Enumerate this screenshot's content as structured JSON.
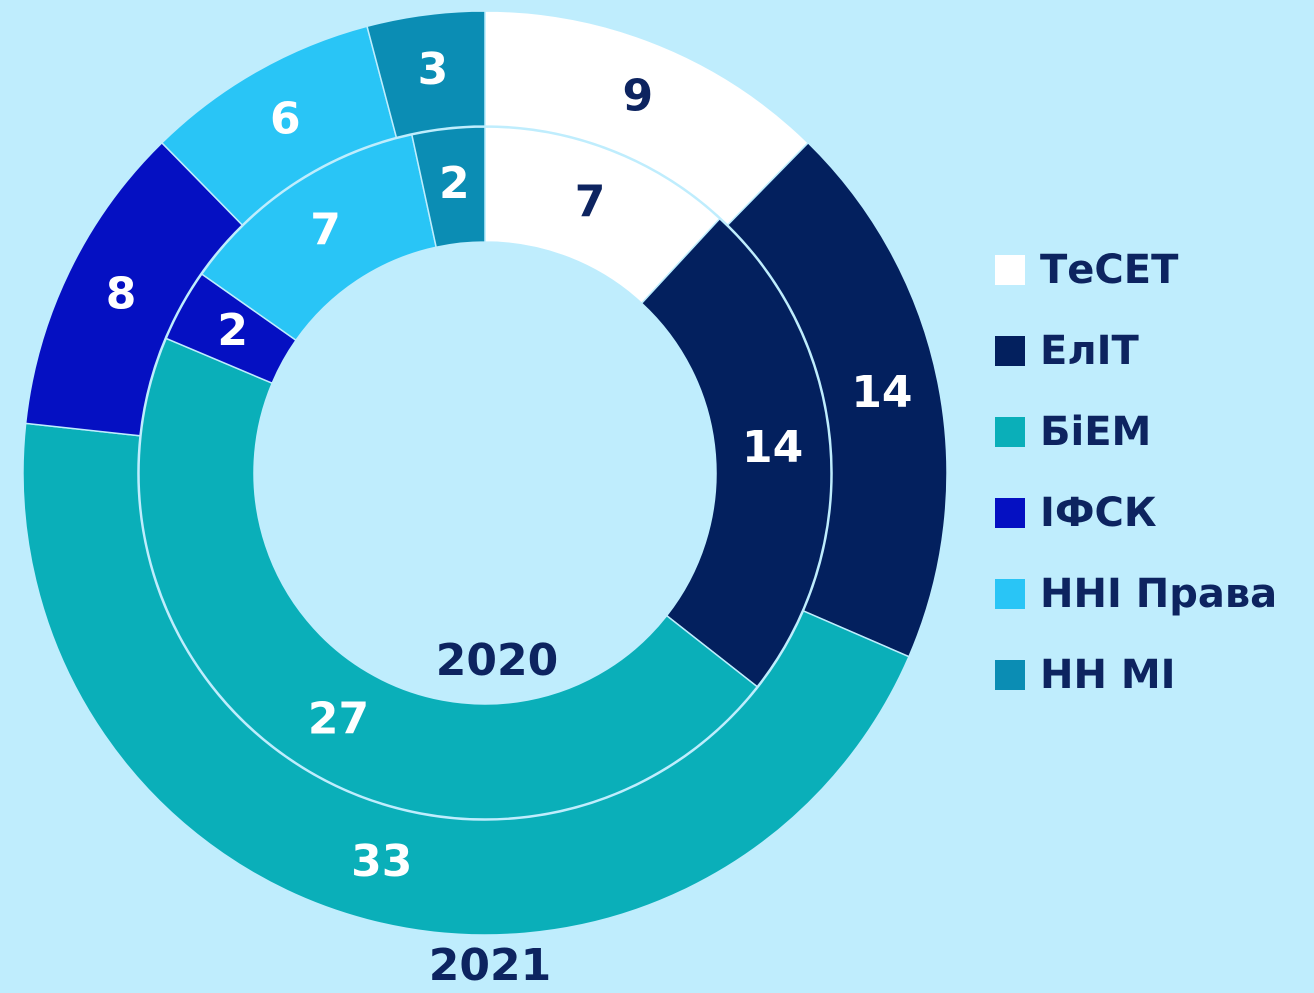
{
  "chart_data": {
    "type": "donut",
    "categories": [
      "ТеСЕТ",
      "ЕлІТ",
      "БіЕМ",
      "ІФСК",
      "ННІ Права",
      "НН МІ"
    ],
    "colors": [
      "#ffffff",
      "#03205e",
      "#0aafb9",
      "#0510c2",
      "#29c5f6",
      "#0b8db4"
    ],
    "series": [
      {
        "name": "2020",
        "values": [
          7,
          14,
          27,
          2,
          7,
          2
        ]
      },
      {
        "name": "2021",
        "values": [
          9,
          14,
          33,
          8,
          6,
          3
        ]
      }
    ],
    "legend": "right"
  }
}
